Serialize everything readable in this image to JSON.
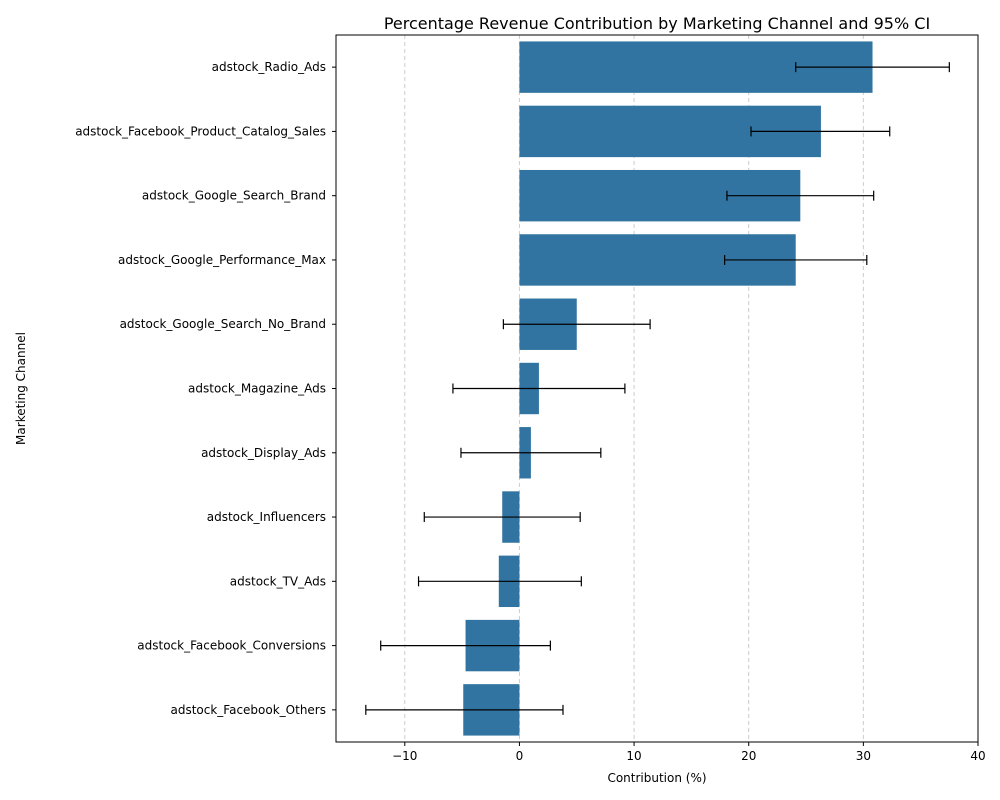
{
  "chart_data": {
    "type": "bar",
    "orientation": "horizontal",
    "title": "Percentage Revenue Contribution by Marketing Channel and 95% CI",
    "xlabel": "Contribution (%)",
    "ylabel": "Marketing Channel",
    "xlim": [
      -16,
      40
    ],
    "xticks": [
      -10,
      0,
      10,
      20,
      30,
      40
    ],
    "xtick_labels": [
      "−10",
      "0",
      "10",
      "20",
      "30",
      "40"
    ],
    "grid": "vertical dashed",
    "bar_color": "#3274a1",
    "categories": [
      "adstock_Radio_Ads",
      "adstock_Facebook_Product_Catalog_Sales",
      "adstock_Google_Search_Brand",
      "adstock_Google_Performance_Max",
      "adstock_Google_Search_No_Brand",
      "adstock_Magazine_Ads",
      "adstock_Display_Ads",
      "adstock_Influencers",
      "adstock_TV_Ads",
      "adstock_Facebook_Conversions",
      "adstock_Facebook_Others"
    ],
    "values": [
      30.8,
      26.3,
      24.5,
      24.1,
      5.0,
      1.7,
      1.0,
      -1.5,
      -1.8,
      -4.7,
      -4.9
    ],
    "ci_low": [
      24.1,
      20.2,
      18.1,
      17.9,
      -1.4,
      -5.8,
      -5.1,
      -8.3,
      -8.8,
      -12.1,
      -13.4
    ],
    "ci_high": [
      37.5,
      32.3,
      30.9,
      30.3,
      11.4,
      9.2,
      7.1,
      5.3,
      5.4,
      2.7,
      3.8
    ]
  }
}
